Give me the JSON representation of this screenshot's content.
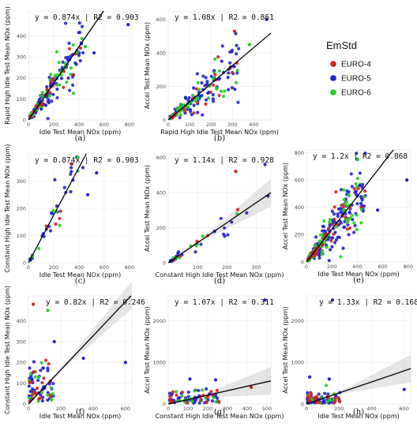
{
  "legend": {
    "title": "EmStd",
    "items": [
      {
        "label": "EURO-4",
        "color": "#cc2222"
      },
      {
        "label": "EURO-5",
        "color": "#2222cc"
      },
      {
        "label": "EURO-6",
        "color": "#22cc22"
      }
    ]
  },
  "chart_data": [
    {
      "type": "scatter",
      "caption": "(a)",
      "equation": "y = 0.874x | R2 = 0.903",
      "xlabel": "Idle Test Mean NOx (ppm)",
      "ylabel": "Rapid High Idle Test Mean NOx (ppm)",
      "xlim": [
        0,
        820
      ],
      "ylim": [
        0,
        520
      ],
      "xticks": [
        0,
        200,
        400,
        600,
        800
      ],
      "yticks": [
        0,
        100,
        200,
        300,
        400
      ],
      "slope": 0.874,
      "band": false,
      "seed": 11,
      "n": [
        22,
        110,
        45
      ],
      "noise": 0.25,
      "xmax": 420,
      "outliers": [
        [
          790,
          455,
          1
        ],
        [
          450,
          350,
          2
        ],
        [
          520,
          320,
          1
        ]
      ]
    },
    {
      "type": "scatter",
      "caption": "(b)",
      "equation": "y = 1.08x | R2 = 0.861",
      "xlabel": "Rapid High Idle Test Mean NOx (ppm)",
      "ylabel": "Accel Test Mean NOx (ppm)",
      "xlim": [
        0,
        480
      ],
      "ylim": [
        0,
        650
      ],
      "xticks": [
        0,
        100,
        200,
        300,
        400
      ],
      "yticks": [
        0,
        200,
        400,
        600
      ],
      "slope": 1.08,
      "band": false,
      "seed": 22,
      "n": [
        22,
        110,
        45
      ],
      "noise": 0.3,
      "xmax": 320,
      "outliers": [
        [
          460,
          600,
          1
        ],
        [
          380,
          450,
          2
        ],
        [
          310,
          530,
          0
        ]
      ]
    },
    {
      "type": "scatter",
      "caption": "(c)",
      "equation": "y = 0.874x | R2 = 0.903",
      "xlabel": "Idle Test Mean NOx (ppm)",
      "ylabel": "Constant High Idle Test Mean NOx (ppm)",
      "xlim": [
        0,
        820
      ],
      "ylim": [
        0,
        400
      ],
      "xticks": [
        0,
        200,
        400,
        600,
        800
      ],
      "yticks": [
        0,
        100,
        200,
        300
      ],
      "slope": 0.874,
      "band": false,
      "seed": 33,
      "n": [
        5,
        25,
        8
      ],
      "noise": 0.2,
      "xmax": 420,
      "outliers": [
        [
          540,
          330,
          1
        ],
        [
          340,
          335,
          1
        ],
        [
          470,
          250,
          1
        ]
      ]
    },
    {
      "type": "scatter",
      "caption": "(d)",
      "equation": "y = 1.14x | R2 = 0.928",
      "xlabel": "Constant High Idle Test Mean NOx (ppm)",
      "ylabel": "Accel Test Mean NOx (ppm)",
      "xlim": [
        0,
        350
      ],
      "ylim": [
        0,
        620
      ],
      "xticks": [
        100,
        200,
        300
      ],
      "yticks": [
        0,
        200,
        400,
        600
      ],
      "slope": 1.14,
      "band": true,
      "seed": 44,
      "n": [
        5,
        25,
        8
      ],
      "noise": 0.25,
      "xmax": 260,
      "outliers": [
        [
          330,
          560,
          1
        ],
        [
          230,
          520,
          0
        ],
        [
          340,
          380,
          1
        ]
      ]
    },
    {
      "type": "scatter",
      "caption": "(e)",
      "equation": "y = 1.2x | R2 = 0.868",
      "xlabel": "Idle Test Mean NOx (ppm)",
      "ylabel": "Accel Test Mean NOx (ppm)",
      "xlim": [
        0,
        820
      ],
      "ylim": [
        0,
        820
      ],
      "xticks": [
        0,
        200,
        400,
        600,
        800
      ],
      "yticks": [
        0,
        200,
        400,
        600,
        800
      ],
      "slope": 1.2,
      "band": false,
      "seed": 55,
      "n": [
        40,
        160,
        70
      ],
      "noise": 0.3,
      "xmax": 450,
      "outliers": [
        [
          790,
          600,
          1
        ],
        [
          560,
          380,
          1
        ],
        [
          420,
          560,
          1
        ]
      ]
    },
    {
      "type": "scatter",
      "caption": "(f)",
      "equation": "y = 0.82x | R2 = 0.246",
      "xlabel": "Idle Test Mean NOx (ppm)",
      "ylabel": "Constant High Idle Test Mean NOx (ppm)",
      "xlim": [
        0,
        640
      ],
      "ylim": [
        0,
        520
      ],
      "xticks": [
        0,
        200,
        400,
        600
      ],
      "yticks": [
        0,
        100,
        200,
        300,
        400
      ],
      "slope": 0.82,
      "band": true,
      "seed": 66,
      "n": [
        20,
        40,
        15
      ],
      "noise": 1.2,
      "xmax": 150,
      "outliers": [
        [
          600,
          200,
          1
        ],
        [
          30,
          480,
          0
        ],
        [
          340,
          220,
          1
        ],
        [
          120,
          450,
          2
        ],
        [
          160,
          300,
          1
        ]
      ]
    },
    {
      "type": "scatter",
      "caption": "(g)",
      "equation": "y = 1.07x | R2 = 0.311",
      "xlabel": "Constant High Idle Test Mean NOx (ppm)",
      "ylabel": "Accel Test Mean NOx (ppm)",
      "xlim": [
        0,
        520
      ],
      "ylim": [
        0,
        2600
      ],
      "xticks": [
        0,
        100,
        200,
        300,
        400,
        500
      ],
      "yticks": [
        0,
        1000,
        2000
      ],
      "slope": 1.07,
      "band": true,
      "seed": 77,
      "n": [
        20,
        45,
        15
      ],
      "noise": 1.1,
      "xmax": 250,
      "outliers": [
        [
          490,
          2500,
          1
        ],
        [
          110,
          600,
          1
        ],
        [
          240,
          580,
          1
        ],
        [
          420,
          400,
          0
        ]
      ]
    },
    {
      "type": "scatter",
      "caption": "(h)",
      "equation": "y = 1.33x | R2 = 0.168",
      "xlabel": "Idle Test Mean NOx (ppm)",
      "ylabel": "Accel Test Mean NOx (ppm)",
      "xlim": [
        0,
        640
      ],
      "ylim": [
        0,
        2600
      ],
      "xticks": [
        0,
        200,
        400,
        600
      ],
      "yticks": [
        0,
        1000,
        2000
      ],
      "slope": 1.33,
      "band": true,
      "seed": 88,
      "n": [
        20,
        45,
        15
      ],
      "noise": 1.3,
      "xmax": 200,
      "outliers": [
        [
          160,
          2500,
          1
        ],
        [
          600,
          350,
          1
        ],
        [
          20,
          650,
          1
        ],
        [
          140,
          600,
          1
        ]
      ]
    }
  ]
}
